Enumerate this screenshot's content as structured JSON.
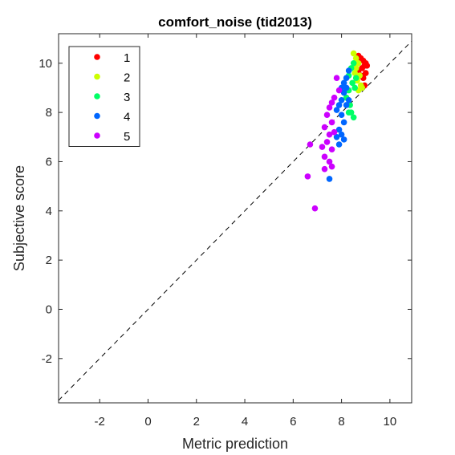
{
  "chart_data": {
    "type": "scatter",
    "title": "comfort_noise (tid2013)",
    "xlabel": "Metric prediction",
    "ylabel": "Subjective score",
    "xlim": [
      -3.7,
      10.9
    ],
    "ylim": [
      -3.8,
      11.2
    ],
    "xticks": [
      -2,
      0,
      2,
      4,
      6,
      8,
      10
    ],
    "yticks": [
      -2,
      0,
      2,
      4,
      6,
      8,
      10
    ],
    "grid": false,
    "legend_position": "top-left",
    "reference_line": "y = x (dashed)",
    "series": [
      {
        "name": "1",
        "color": "#ff0000",
        "points": [
          [
            8.7,
            10.3
          ],
          [
            8.8,
            10.2
          ],
          [
            8.9,
            10.1
          ],
          [
            9.0,
            10.0
          ],
          [
            8.95,
            9.9
          ],
          [
            9.05,
            9.9
          ],
          [
            8.85,
            9.8
          ],
          [
            9.0,
            9.6
          ],
          [
            8.9,
            9.4
          ],
          [
            8.95,
            9.1
          ],
          [
            8.7,
            9.7
          ],
          [
            8.8,
            9.5
          ]
        ]
      },
      {
        "name": "2",
        "color": "#ccff00",
        "points": [
          [
            8.5,
            10.4
          ],
          [
            8.6,
            10.2
          ],
          [
            8.7,
            10.0
          ],
          [
            8.6,
            9.8
          ],
          [
            8.55,
            9.6
          ],
          [
            8.75,
            9.5
          ],
          [
            8.65,
            9.3
          ],
          [
            8.8,
            9.1
          ],
          [
            8.7,
            8.9
          ],
          [
            8.85,
            9.0
          ]
        ]
      },
      {
        "name": "3",
        "color": "#00ff66",
        "points": [
          [
            8.5,
            10.0
          ],
          [
            8.4,
            9.8
          ],
          [
            8.3,
            9.5
          ],
          [
            8.45,
            9.2
          ],
          [
            8.3,
            8.9
          ],
          [
            8.2,
            8.6
          ],
          [
            8.35,
            8.3
          ],
          [
            8.4,
            8.0
          ],
          [
            8.5,
            7.8
          ],
          [
            8.3,
            8.0
          ],
          [
            8.6,
            9.4
          ],
          [
            8.55,
            9.0
          ]
        ]
      },
      {
        "name": "4",
        "color": "#0066ff",
        "points": [
          [
            8.3,
            9.7
          ],
          [
            8.2,
            9.4
          ],
          [
            8.1,
            9.2
          ],
          [
            8.0,
            9.0
          ],
          [
            8.1,
            8.8
          ],
          [
            8.0,
            8.5
          ],
          [
            7.9,
            8.3
          ],
          [
            7.8,
            8.1
          ],
          [
            8.0,
            7.9
          ],
          [
            8.1,
            7.6
          ],
          [
            7.9,
            7.3
          ],
          [
            8.0,
            7.1
          ],
          [
            7.8,
            7.0
          ],
          [
            8.1,
            6.9
          ],
          [
            7.9,
            6.7
          ],
          [
            8.2,
            8.3
          ],
          [
            8.3,
            8.5
          ],
          [
            8.2,
            9.0
          ],
          [
            7.5,
            5.3
          ]
        ]
      },
      {
        "name": "5",
        "color": "#cc00ff",
        "points": [
          [
            7.8,
            9.4
          ],
          [
            7.9,
            8.9
          ],
          [
            7.7,
            8.6
          ],
          [
            7.6,
            8.4
          ],
          [
            7.5,
            8.2
          ],
          [
            7.4,
            7.9
          ],
          [
            7.6,
            7.6
          ],
          [
            7.3,
            7.4
          ],
          [
            7.5,
            7.1
          ],
          [
            7.4,
            6.8
          ],
          [
            7.2,
            6.6
          ],
          [
            7.6,
            6.5
          ],
          [
            7.3,
            6.2
          ],
          [
            7.5,
            6.0
          ],
          [
            7.6,
            5.8
          ],
          [
            7.3,
            5.7
          ],
          [
            6.7,
            6.7
          ],
          [
            6.6,
            5.4
          ],
          [
            6.9,
            4.1
          ],
          [
            7.7,
            7.2
          ]
        ]
      }
    ]
  }
}
